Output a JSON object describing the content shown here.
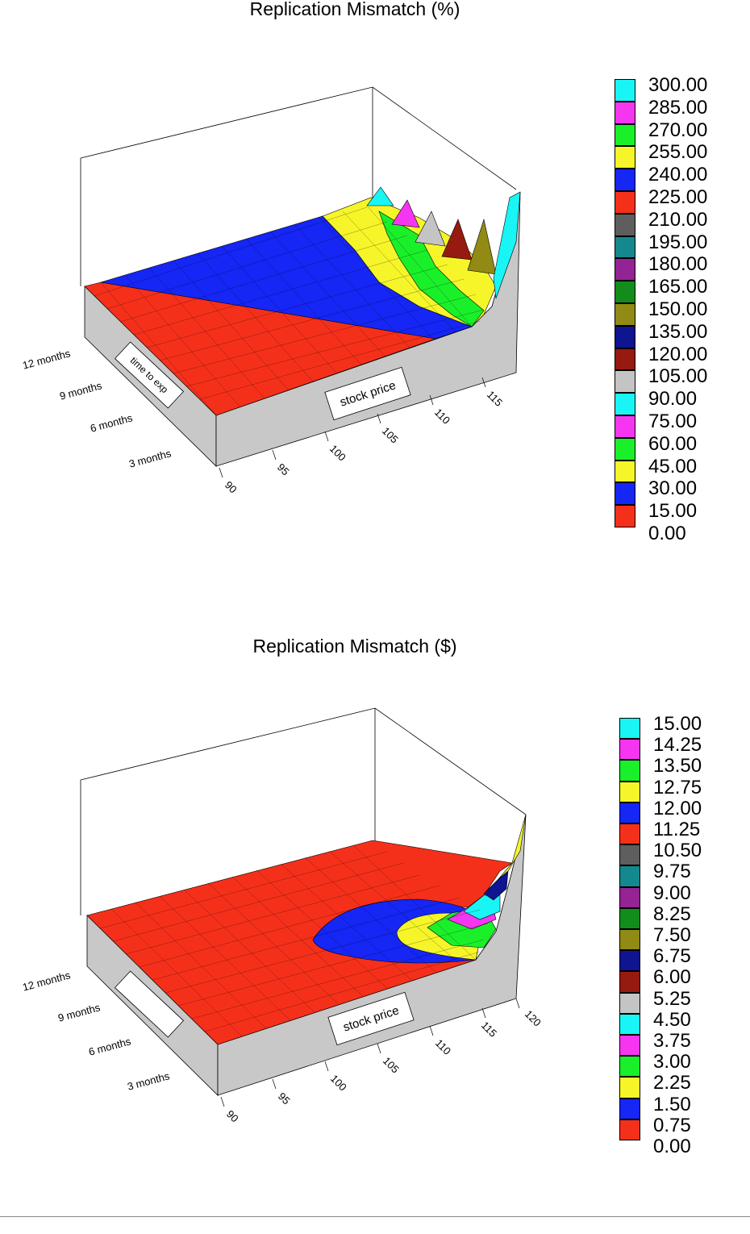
{
  "chart_data": [
    {
      "type": "surface3d",
      "title": "Replication Mismatch (%)",
      "xlabel": "stock price",
      "ylabel": "time to exp",
      "x_ticks": [
        "90",
        "95",
        "100",
        "105",
        "110",
        "115"
      ],
      "y_ticks": [
        "3 months",
        "6 months",
        "9 months",
        "12 months"
      ],
      "xlim": [
        90,
        118
      ],
      "legend_levels": [
        "300.00",
        "285.00",
        "270.00",
        "255.00",
        "240.00",
        "225.00",
        "210.00",
        "195.00",
        "180.00",
        "165.00",
        "150.00",
        "135.00",
        "120.00",
        "105.00",
        "90.00",
        "75.00",
        "60.00",
        "45.00",
        "30.00",
        "15.00",
        "0.00"
      ],
      "legend_colors": [
        "#19f5f5",
        "#f535f0",
        "#19f02a",
        "#f5f52a",
        "#1526f5",
        "#f5301a",
        "#5e5e5e",
        "#13898e",
        "#942394",
        "#128c1b",
        "#918a14",
        "#0f1491",
        "#961a10",
        "#c4c4c4",
        "#19f5f5",
        "#f535f0",
        "#19f02a",
        "#f5f52a",
        "#1526f5",
        "#f5301a"
      ],
      "legend_position": "right"
    },
    {
      "type": "surface3d",
      "title": "Replication Mismatch ($)",
      "xlabel": "stock price",
      "ylabel": "",
      "x_ticks": [
        "90",
        "95",
        "100",
        "105",
        "110",
        "115",
        "120"
      ],
      "y_ticks": [
        "3 months",
        "6 months",
        "9 months",
        "12 months"
      ],
      "xlim": [
        90,
        120
      ],
      "legend_levels": [
        "15.00",
        "14.25",
        "13.50",
        "12.75",
        "12.00",
        "11.25",
        "10.50",
        "9.75",
        "9.00",
        "8.25",
        "7.50",
        "6.75",
        "6.00",
        "5.25",
        "4.50",
        "3.75",
        "3.00",
        "2.25",
        "1.50",
        "0.75",
        "0.00"
      ],
      "legend_colors": [
        "#19f5f5",
        "#f535f0",
        "#19f02a",
        "#f5f52a",
        "#1526f5",
        "#f5301a",
        "#5e5e5e",
        "#13898e",
        "#942394",
        "#128c1b",
        "#918a14",
        "#0f1491",
        "#961a10",
        "#c4c4c4",
        "#19f5f5",
        "#f535f0",
        "#19f02a",
        "#f5f52a",
        "#1526f5",
        "#f5301a"
      ],
      "legend_position": "right"
    }
  ]
}
